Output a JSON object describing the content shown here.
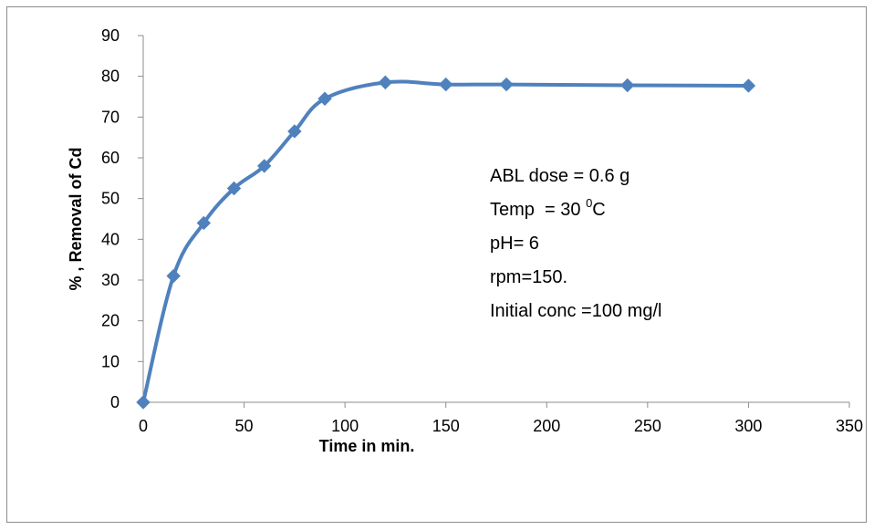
{
  "chart_data": {
    "type": "line",
    "title": "",
    "xlabel": "Time in min.",
    "ylabel": "% , Removal of Cd",
    "xlim": [
      0,
      350
    ],
    "ylim": [
      0,
      90
    ],
    "x_ticks": [
      "0",
      "50",
      "100",
      "150",
      "200",
      "250",
      "300",
      "350"
    ],
    "y_ticks": [
      "0",
      "10",
      "20",
      "30",
      "40",
      "50",
      "60",
      "70",
      "80",
      "90"
    ],
    "grid": false,
    "legend": "none",
    "smooth": true,
    "marker": "diamond",
    "series": [
      {
        "color": "#4f81bd",
        "points": [
          {
            "x": 0,
            "y": 0
          },
          {
            "x": 15,
            "y": 31
          },
          {
            "x": 30,
            "y": 44
          },
          {
            "x": 45,
            "y": 52.5
          },
          {
            "x": 60,
            "y": 58
          },
          {
            "x": 75,
            "y": 66.5
          },
          {
            "x": 90,
            "y": 74.5
          },
          {
            "x": 120,
            "y": 78.5
          },
          {
            "x": 150,
            "y": 78
          },
          {
            "x": 180,
            "y": 78
          },
          {
            "x": 240,
            "y": 77.8
          },
          {
            "x": 300,
            "y": 77.7
          }
        ]
      }
    ],
    "annotation": {
      "line1": "ABL dose = 0.6 g",
      "line2_prefix": "Temp  = 30 ",
      "line2_sup": "0",
      "line2_suffix": "C",
      "line3": "pH= 6",
      "line4": "rpm=150.",
      "line5": "Initial conc =100 mg/l"
    }
  }
}
